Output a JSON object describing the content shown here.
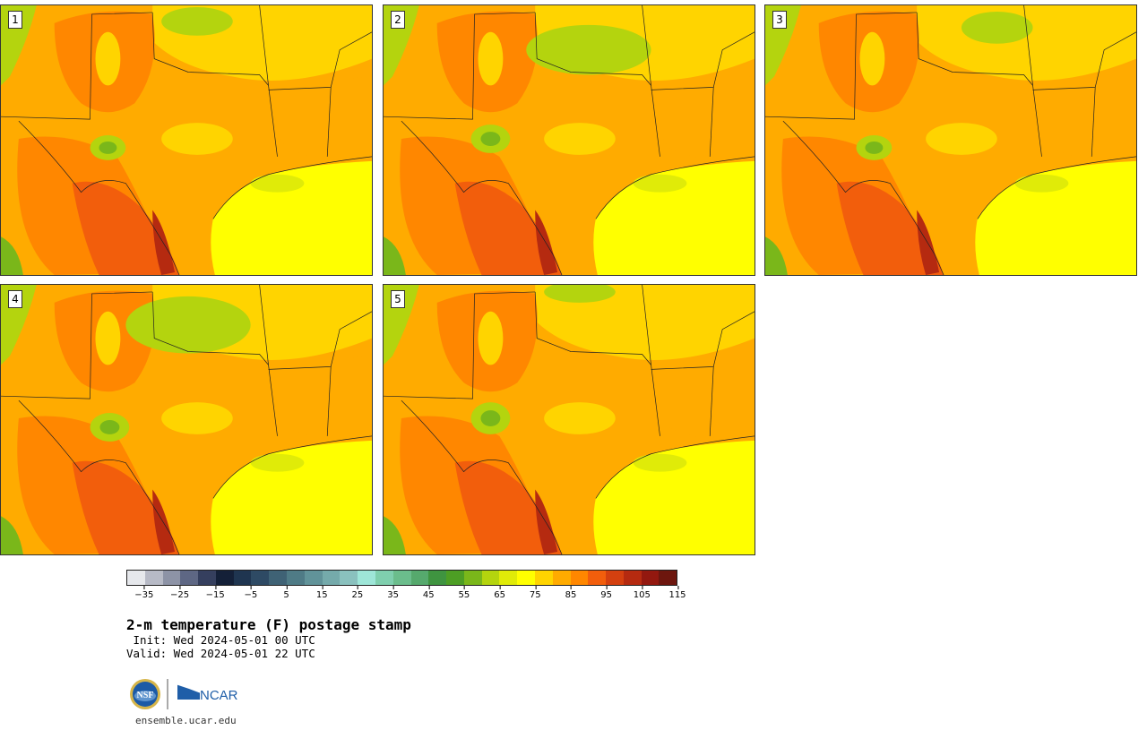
{
  "panels": [
    {
      "label": "1"
    },
    {
      "label": "2"
    },
    {
      "label": "3"
    },
    {
      "label": "4"
    },
    {
      "label": "5"
    }
  ],
  "colorbar": {
    "colors": [
      "#e6e8ec",
      "#b7bac6",
      "#8d93a6",
      "#5e6784",
      "#353f5e",
      "#142038",
      "#1f3550",
      "#2e4a64",
      "#3f6275",
      "#4f7b86",
      "#619399",
      "#75aaab",
      "#8ac1be",
      "#9ee6d8",
      "#7fcfae",
      "#6bbd8c",
      "#56a96d",
      "#3f9440",
      "#4d9e24",
      "#7ab71a",
      "#b4d40e",
      "#e0eb08",
      "#ffff00",
      "#ffd400",
      "#ffab00",
      "#ff8700",
      "#f25e0c",
      "#d4400f",
      "#b52a10",
      "#93180f",
      "#6d160e"
    ],
    "ticks": [
      "−35",
      "−25",
      "−15",
      "−5",
      "5",
      "15",
      "25",
      "35",
      "45",
      "55",
      "65",
      "75",
      "85",
      "95",
      "105",
      "115"
    ]
  },
  "title": "2-m temperature (F) postage stamp",
  "init_line": " Init: Wed 2024-05-01 00 UTC",
  "valid_line": "Valid: Wed 2024-05-01 22 UTC",
  "logos": {
    "nsf": "NSF",
    "ncar": "NCAR"
  },
  "site": "ensemble.ucar.edu"
}
